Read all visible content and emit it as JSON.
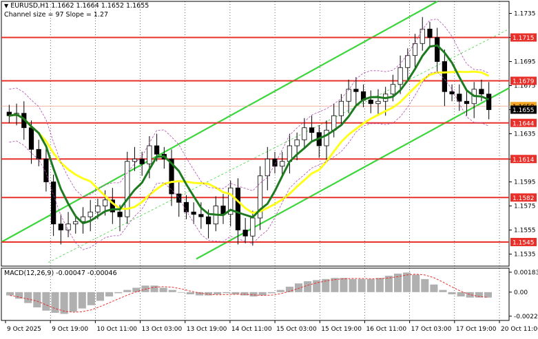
{
  "header": {
    "symbol_line": "EURUSD,H1  1.1662 1.1664 1.1652 1.1655",
    "channel_line": "Channel size = 97 Slope = 1.27"
  },
  "macd_header": {
    "label": "MACD(12,26,9) -0.00047 -0.00046"
  },
  "chart_data": [
    {
      "type": "line",
      "title": "EURUSD,H1",
      "x_ticks": [
        "9 Oct 2025",
        "9 Oct 19:00",
        "10 Oct 11:00",
        "13 Oct 03:00",
        "13 Oct 19:00",
        "14 Oct 11:00",
        "15 Oct 03:00",
        "15 Oct 19:00",
        "16 Oct 11:00",
        "17 Oct 03:00",
        "17 Oct 19:00",
        "20 Oct 11:00"
      ],
      "y_ticks": [
        "1.1735",
        "1.1715",
        "1.1695",
        "1.1675",
        "1.1655",
        "1.1635",
        "1.1614",
        "1.1595",
        "1.1575",
        "1.1555",
        "1.1535"
      ],
      "ylim": [
        1.1525,
        1.1745
      ],
      "horizontal_levels": [
        {
          "value": 1.1715,
          "label": "1.1715",
          "color": "#e8302a"
        },
        {
          "value": 1.1679,
          "label": "1.1679",
          "color": "#e8302a"
        },
        {
          "value": 1.1644,
          "label": "1.1644",
          "color": "#e8302a"
        },
        {
          "value": 1.1614,
          "label": "1.1614",
          "color": "#e8302a"
        },
        {
          "value": 1.1582,
          "label": "1.1582",
          "color": "#e8302a"
        },
        {
          "value": 1.1545,
          "label": "1.1545",
          "color": "#e8302a"
        }
      ],
      "current_price": {
        "value": 1.1655,
        "label": "1.1655"
      },
      "current_bid_tag": {
        "value": 1.1658,
        "label": "1.1658"
      },
      "channel_color": "#3ad63a",
      "close_series": [
        1.165,
        1.1652,
        1.164,
        1.1622,
        1.1614,
        1.1595,
        1.156,
        1.1555,
        1.156,
        1.1562,
        1.1566,
        1.157,
        1.1575,
        1.158,
        1.157,
        1.1566,
        1.1612,
        1.1614,
        1.161,
        1.1625,
        1.1618,
        1.1614,
        1.1585,
        1.1578,
        1.157,
        1.1568,
        1.1566,
        1.156,
        1.1575,
        1.1568,
        1.159,
        1.1555,
        1.155,
        1.1565,
        1.16,
        1.1614,
        1.1608,
        1.1612,
        1.1625,
        1.163,
        1.164,
        1.1636,
        1.1625,
        1.1638,
        1.165,
        1.1662,
        1.1672,
        1.167,
        1.1663,
        1.166,
        1.1662,
        1.1668,
        1.1676,
        1.169,
        1.17,
        1.171,
        1.1722,
        1.1715,
        1.1695,
        1.167,
        1.1668,
        1.1662,
        1.166,
        1.1672,
        1.1668,
        1.1655
      ],
      "ma_slow_color": "#ffff1a",
      "ma_fast_color": "#1e7a1e",
      "envelope_color": "#b04ab0"
    },
    {
      "type": "bar",
      "title": "MACD(12,26,9)",
      "y_ticks": [
        "0.00183",
        "0.00",
        "-0.00221"
      ],
      "ylim": [
        -0.0026,
        0.0022
      ],
      "histogram": [
        -0.0003,
        -0.0006,
        -0.001,
        -0.0014,
        -0.0017,
        -0.0019,
        -0.002,
        -0.0018,
        -0.0015,
        -0.0012,
        -0.0008,
        -0.0004,
        -0.0001,
        0.0002,
        0.0004,
        0.0006,
        0.0006,
        0.0004,
        0.0002,
        0.0,
        -0.0002,
        -0.0003,
        -0.0003,
        -0.0002,
        -0.0001,
        -0.0002,
        -0.0003,
        -0.0004,
        -0.0003,
        -0.0001,
        0.0002,
        0.0005,
        0.0008,
        0.001,
        0.0011,
        0.0012,
        0.0013,
        0.0013,
        0.0012,
        0.0012,
        0.0012,
        0.0013,
        0.0015,
        0.0017,
        0.0018,
        0.0016,
        0.0012,
        0.0007,
        0.0002,
        -0.0002,
        -0.0004,
        -0.0005,
        -0.0005,
        -0.0005
      ],
      "signal_color": "#e8302a",
      "hist_color": "#b0b0b0"
    }
  ]
}
